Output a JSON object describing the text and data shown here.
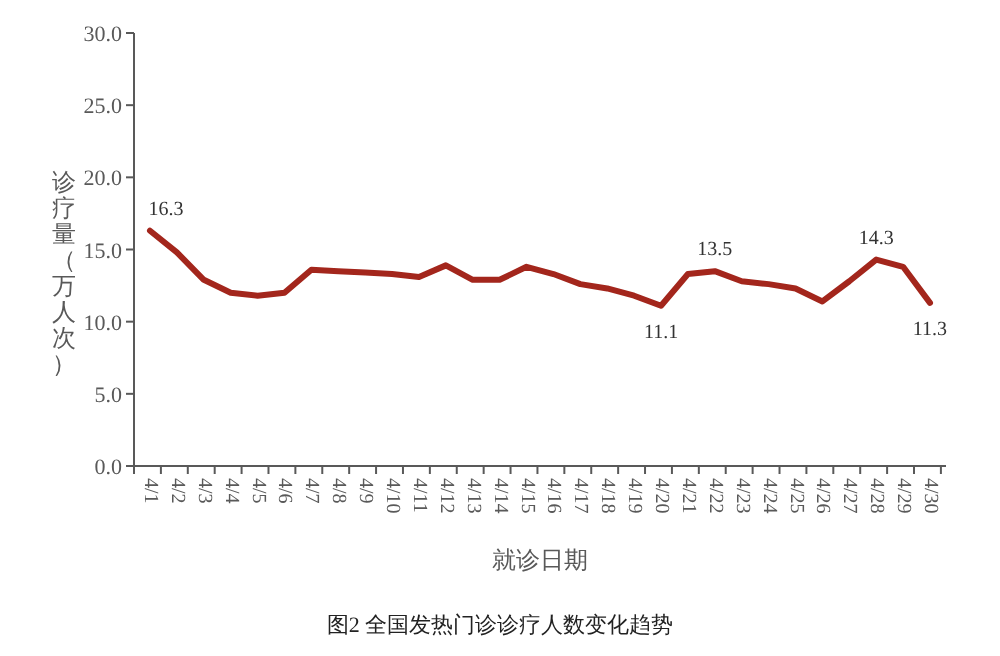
{
  "chart_data": {
    "type": "line",
    "ylabel": "诊疗量（万人次）",
    "xlabel": "就诊日期",
    "annotations": [
      "图2 全国发热门诊诊疗人数变化趋势"
    ],
    "categories": [
      "4/1",
      "4/2",
      "4/3",
      "4/4",
      "4/5",
      "4/6",
      "4/7",
      "4/8",
      "4/9",
      "4/10",
      "4/11",
      "4/12",
      "4/13",
      "4/14",
      "4/15",
      "4/16",
      "4/17",
      "4/18",
      "4/19",
      "4/20",
      "4/21",
      "4/22",
      "4/23",
      "4/24",
      "4/25",
      "4/26",
      "4/27",
      "4/28",
      "4/29",
      "4/30"
    ],
    "series": [
      {
        "color": "#a3261c",
        "values": [
          16.3,
          14.8,
          12.9,
          12.0,
          11.8,
          12.0,
          13.6,
          13.5,
          13.4,
          13.3,
          13.1,
          13.9,
          12.9,
          12.9,
          13.8,
          13.3,
          12.6,
          12.3,
          11.8,
          11.1,
          13.3,
          13.5,
          12.8,
          12.6,
          12.3,
          11.4,
          12.8,
          14.3,
          13.8,
          11.3
        ],
        "value_labels": [
          "16.3",
          null,
          null,
          null,
          null,
          null,
          null,
          null,
          null,
          null,
          null,
          null,
          null,
          null,
          null,
          null,
          null,
          null,
          null,
          "11.1",
          null,
          "13.5",
          null,
          null,
          null,
          null,
          null,
          "14.3",
          null,
          "11.3"
        ]
      }
    ],
    "ylim": [
      0,
      30
    ],
    "yticks": [
      {
        "value": 0,
        "label": "0.0"
      },
      {
        "value": 5,
        "label": "5.0"
      },
      {
        "value": 10,
        "label": "10.0"
      },
      {
        "value": 15,
        "label": "15.0"
      },
      {
        "value": 20,
        "label": "20.0"
      },
      {
        "value": 25,
        "label": "25.0"
      },
      {
        "value": 30,
        "label": "30.0"
      }
    ],
    "grid": false,
    "marker": "none",
    "line_style": "solid"
  }
}
